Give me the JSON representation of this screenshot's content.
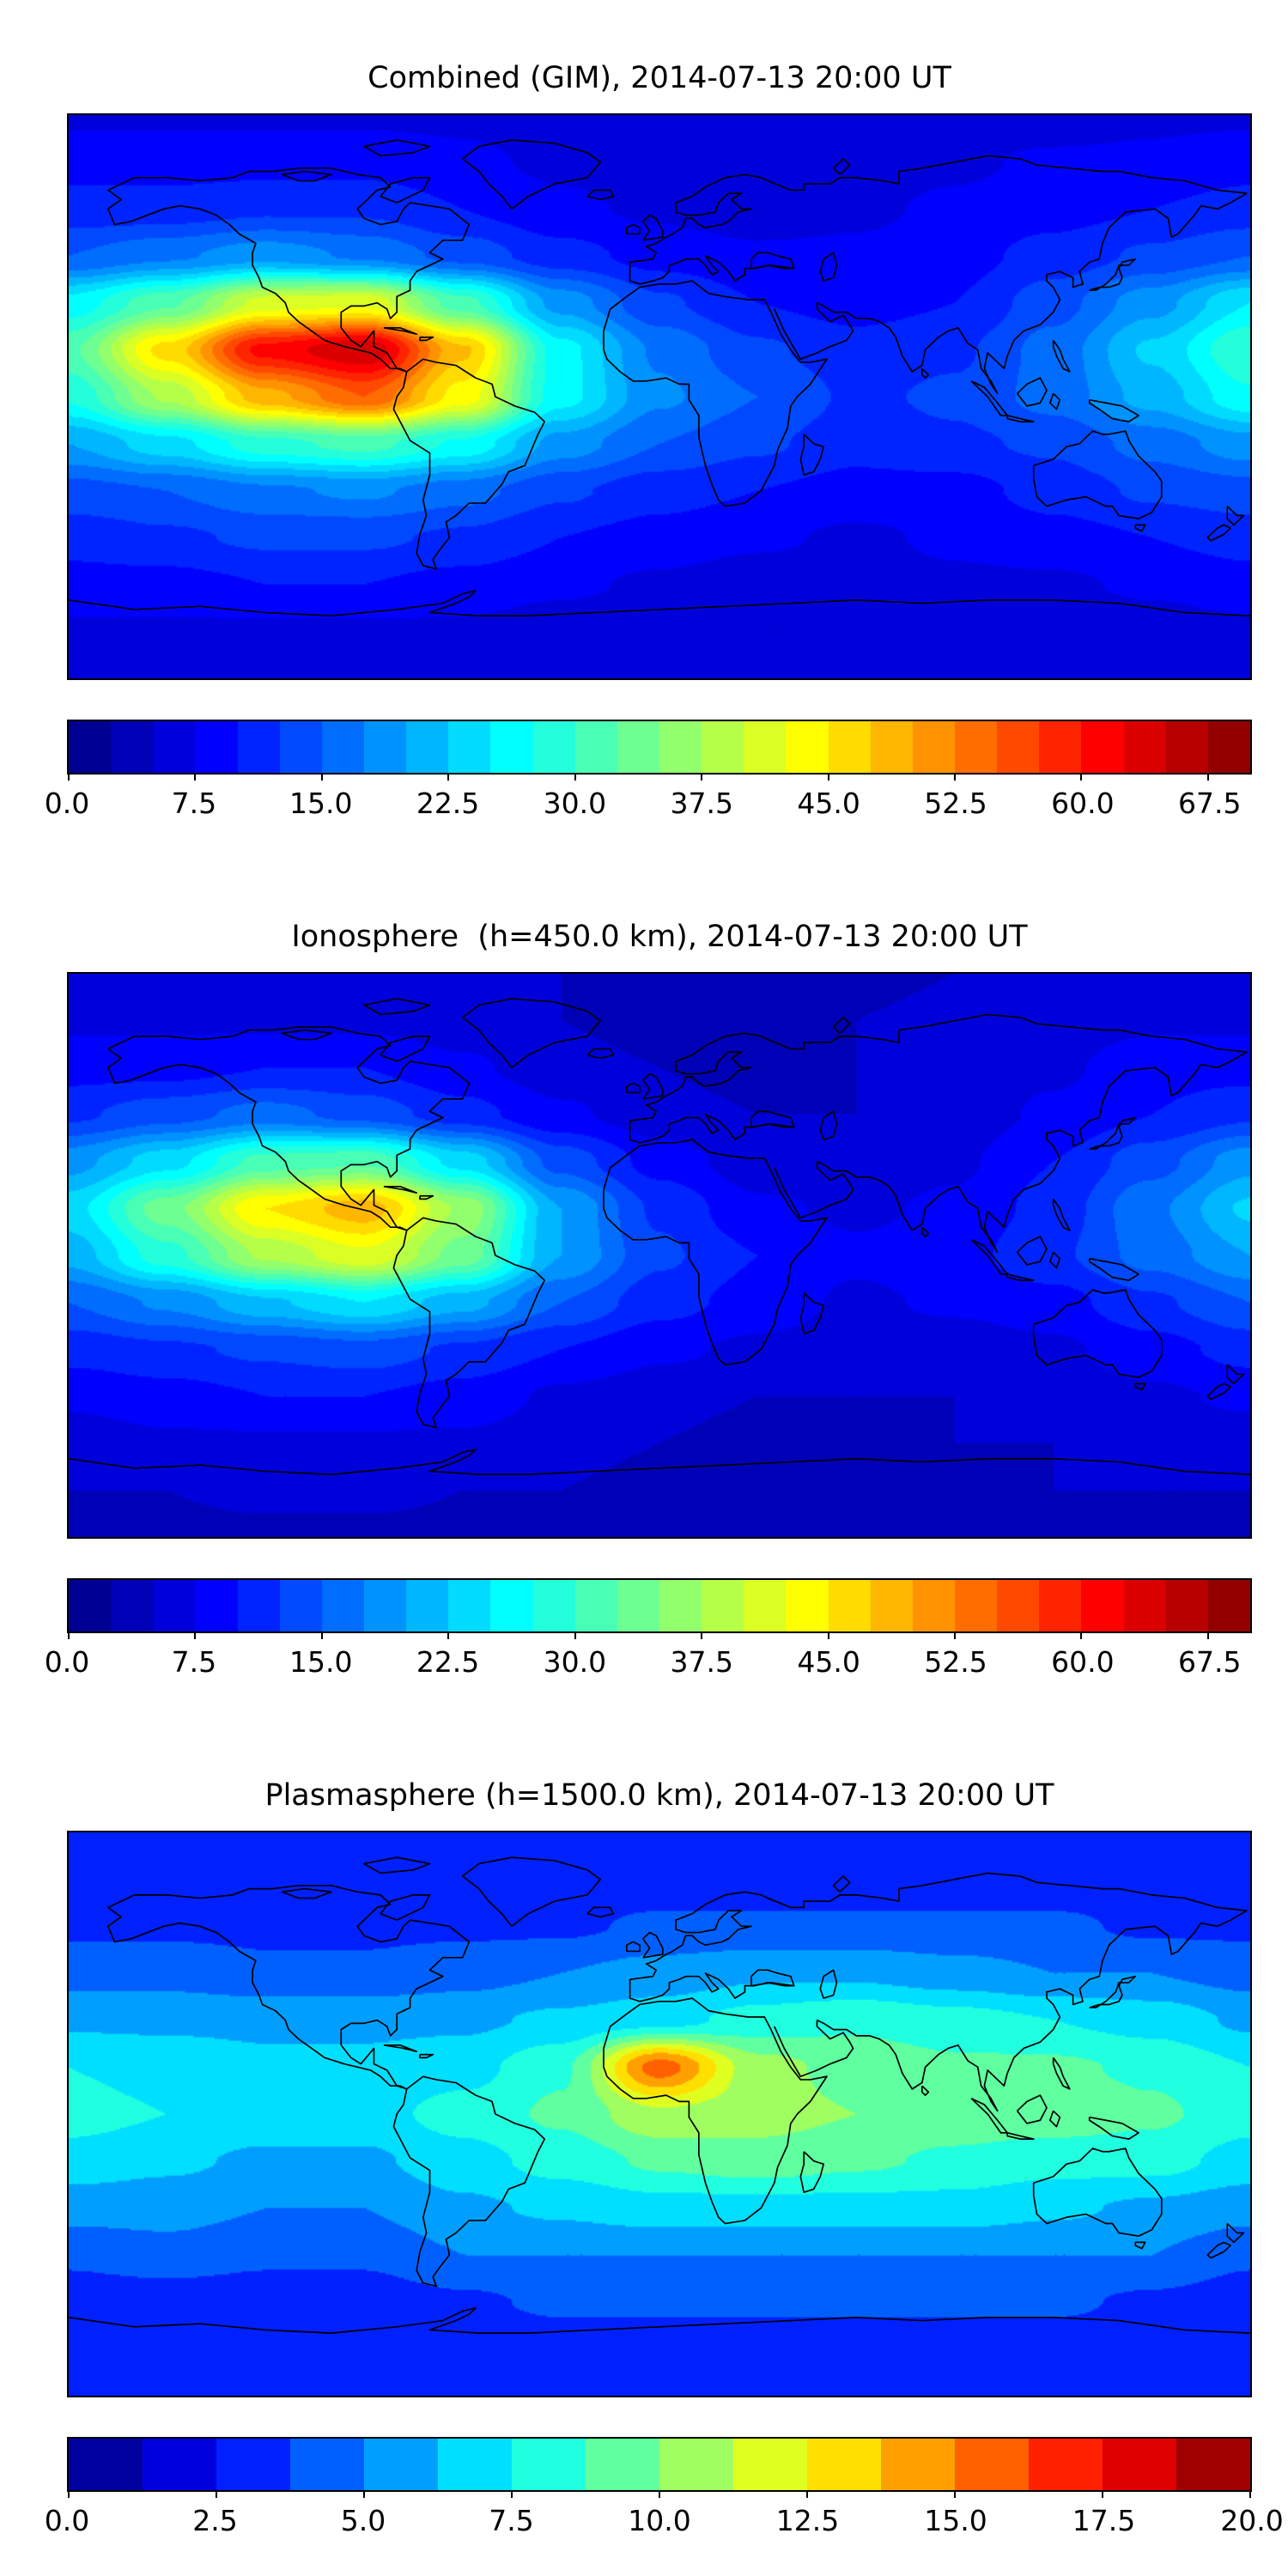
{
  "figure": {
    "background": "#ffffff",
    "colormap": "jet",
    "projection": "equirectangular",
    "lon_range": [
      -180,
      180
    ],
    "lat_range": [
      -90,
      90
    ]
  },
  "chart_data": [
    {
      "type": "heatmap",
      "title": "Combined (GIM), 2014-07-13 20:00 UT",
      "colormap": "jet",
      "levels": {
        "min": 0,
        "max": 70,
        "step": 2.5
      },
      "colorbar_ticks": {
        "values": [
          0,
          7.5,
          15,
          22.5,
          30,
          37.5,
          45,
          52.5,
          60,
          67.5
        ],
        "labels": [
          "0.0",
          "7.5",
          "15.0",
          "22.5",
          "30.0",
          "37.5",
          "45.0",
          "52.5",
          "60.0",
          "67.5"
        ]
      },
      "grid": {
        "lons": [
          -180,
          -150,
          -120,
          -90,
          -60,
          -30,
          0,
          30,
          60,
          90,
          120,
          150,
          180
        ],
        "lats": [
          90,
          75,
          60,
          45,
          30,
          15,
          0,
          -15,
          -30,
          -45,
          -60,
          -75,
          -90
        ],
        "values": [
          [
            7,
            7,
            7,
            7,
            7,
            6,
            6,
            6,
            6,
            6,
            6,
            7,
            7
          ],
          [
            9,
            9,
            9,
            9,
            8,
            7,
            6,
            5,
            6,
            7,
            8,
            8,
            9
          ],
          [
            11,
            11,
            12,
            12,
            10,
            8,
            7,
            6,
            7,
            8,
            9,
            10,
            11
          ],
          [
            15,
            17,
            19,
            17,
            14,
            11,
            9,
            8,
            8,
            9,
            11,
            13,
            15
          ],
          [
            26,
            32,
            41,
            42,
            31,
            19,
            13,
            10,
            9,
            10,
            14,
            19,
            25
          ],
          [
            32,
            46,
            61,
            65,
            48,
            26,
            17,
            13,
            11,
            12,
            16,
            23,
            30
          ],
          [
            28,
            38,
            49,
            55,
            44,
            26,
            18,
            15,
            12,
            13,
            16,
            21,
            27
          ],
          [
            20,
            24,
            29,
            31,
            27,
            19,
            15,
            13,
            11,
            12,
            13,
            16,
            19
          ],
          [
            14,
            15,
            17,
            18,
            16,
            13,
            11,
            10,
            9,
            9,
            11,
            13,
            14
          ],
          [
            11,
            12,
            13,
            13,
            12,
            10,
            9,
            8,
            7,
            8,
            9,
            10,
            11
          ],
          [
            9,
            9,
            10,
            10,
            9,
            8,
            7,
            6,
            6,
            7,
            7,
            8,
            9
          ],
          [
            7,
            7,
            7,
            7,
            7,
            6,
            6,
            5,
            5,
            6,
            6,
            6,
            7
          ],
          [
            6,
            6,
            6,
            6,
            6,
            6,
            6,
            6,
            6,
            6,
            6,
            6,
            6
          ]
        ]
      }
    },
    {
      "type": "heatmap",
      "title": "Ionosphere  (h=450.0 km), 2014-07-13 20:00 UT",
      "colormap": "jet",
      "levels": {
        "min": 0,
        "max": 70,
        "step": 2.5
      },
      "colorbar_ticks": {
        "values": [
          0,
          7.5,
          15,
          22.5,
          30,
          37.5,
          45,
          52.5,
          60,
          67.5
        ],
        "labels": [
          "0.0",
          "7.5",
          "15.0",
          "22.5",
          "30.0",
          "37.5",
          "45.0",
          "52.5",
          "60.0",
          "67.5"
        ]
      },
      "grid": {
        "lons": [
          -180,
          -150,
          -120,
          -90,
          -60,
          -30,
          0,
          30,
          60,
          90,
          120,
          150,
          180
        ],
        "lats": [
          90,
          75,
          60,
          45,
          30,
          15,
          0,
          -15,
          -30,
          -45,
          -60,
          -75,
          -90
        ],
        "values": [
          [
            5,
            5,
            5,
            5,
            5,
            5,
            4,
            4,
            4,
            5,
            5,
            5,
            5
          ],
          [
            7,
            7,
            7,
            7,
            6,
            5,
            4,
            4,
            5,
            6,
            6,
            7,
            7
          ],
          [
            9,
            9,
            10,
            10,
            8,
            6,
            5,
            4,
            5,
            6,
            7,
            9,
            9
          ],
          [
            12,
            14,
            16,
            14,
            11,
            8,
            6,
            5,
            5,
            6,
            8,
            10,
            12
          ],
          [
            19,
            24,
            31,
            32,
            24,
            14,
            9,
            6,
            6,
            7,
            10,
            14,
            19
          ],
          [
            24,
            34,
            45,
            49,
            37,
            20,
            12,
            8,
            7,
            8,
            11,
            17,
            23
          ],
          [
            21,
            29,
            38,
            42,
            34,
            20,
            13,
            10,
            8,
            9,
            12,
            16,
            20
          ],
          [
            15,
            18,
            22,
            25,
            21,
            15,
            11,
            9,
            7,
            8,
            9,
            12,
            15
          ],
          [
            11,
            12,
            13,
            14,
            12,
            10,
            8,
            7,
            6,
            6,
            7,
            9,
            11
          ],
          [
            8,
            9,
            10,
            10,
            9,
            7,
            6,
            5,
            5,
            5,
            6,
            7,
            8
          ],
          [
            6,
            7,
            7,
            7,
            7,
            6,
            5,
            4,
            4,
            5,
            5,
            6,
            6
          ],
          [
            5,
            5,
            6,
            6,
            5,
            5,
            4,
            4,
            4,
            4,
            5,
            5,
            5
          ],
          [
            4,
            4,
            4,
            4,
            4,
            4,
            4,
            4,
            4,
            4,
            4,
            4,
            4
          ]
        ]
      }
    },
    {
      "type": "heatmap",
      "title": "Plasmasphere (h=1500.0 km), 2014-07-13 20:00 UT",
      "colormap": "jet",
      "levels": {
        "min": 0,
        "max": 20,
        "step": 1.25
      },
      "colorbar_ticks": {
        "values": [
          0,
          2.5,
          5,
          7.5,
          10,
          12.5,
          15,
          17.5,
          20
        ],
        "labels": [
          "0.0",
          "2.5",
          "5.0",
          "7.5",
          "10.0",
          "12.5",
          "15.0",
          "17.5",
          "20.0"
        ]
      },
      "grid": {
        "lons": [
          -180,
          -150,
          -120,
          -90,
          -60,
          -30,
          0,
          30,
          60,
          90,
          120,
          150,
          180
        ],
        "lats": [
          90,
          75,
          60,
          45,
          30,
          15,
          0,
          -15,
          -30,
          -45,
          -60,
          -75,
          -90
        ],
        "values": [
          [
            3,
            3,
            3,
            3,
            3,
            3,
            3,
            3,
            3,
            3,
            3,
            3,
            3
          ],
          [
            3,
            3,
            3,
            3,
            3,
            3,
            3,
            3,
            3,
            3,
            3,
            3,
            3
          ],
          [
            3.5,
            3.5,
            3.5,
            3.5,
            3.5,
            3.5,
            4,
            4,
            4,
            4,
            4,
            3.5,
            3.5
          ],
          [
            4.5,
            4.5,
            4,
            4,
            4.5,
            5,
            5.5,
            6,
            6,
            5.5,
            5,
            5,
            4.5
          ],
          [
            6,
            6,
            6,
            6,
            6,
            6.5,
            7,
            8,
            8.5,
            8,
            7.5,
            7,
            6
          ],
          [
            7.5,
            7,
            6.5,
            6.5,
            7,
            8.5,
            15.6,
            10.5,
            9.5,
            9,
            9,
            8.5,
            7.5
          ],
          [
            8,
            7.5,
            7,
            7,
            8,
            9,
            11,
            10.5,
            10,
            9.5,
            9.5,
            9,
            8
          ],
          [
            7,
            6.5,
            6,
            6,
            7,
            8,
            9,
            9.5,
            9,
            8.5,
            8,
            8,
            7
          ],
          [
            5.5,
            5.5,
            5,
            5,
            6,
            6.5,
            7,
            7,
            7,
            7,
            6.5,
            6,
            5.5
          ],
          [
            4,
            4.5,
            4,
            4,
            5,
            5,
            5,
            5,
            5,
            5,
            5,
            5,
            4
          ],
          [
            3,
            3,
            3,
            3,
            3.5,
            4,
            4,
            4,
            4,
            4,
            4,
            3.5,
            3
          ],
          [
            3,
            3,
            3,
            3,
            3,
            3,
            3,
            3,
            3,
            3,
            3,
            3,
            3
          ],
          [
            3,
            3,
            3,
            3,
            3,
            3,
            3,
            3,
            3,
            3,
            3,
            3,
            3
          ]
        ]
      }
    }
  ]
}
